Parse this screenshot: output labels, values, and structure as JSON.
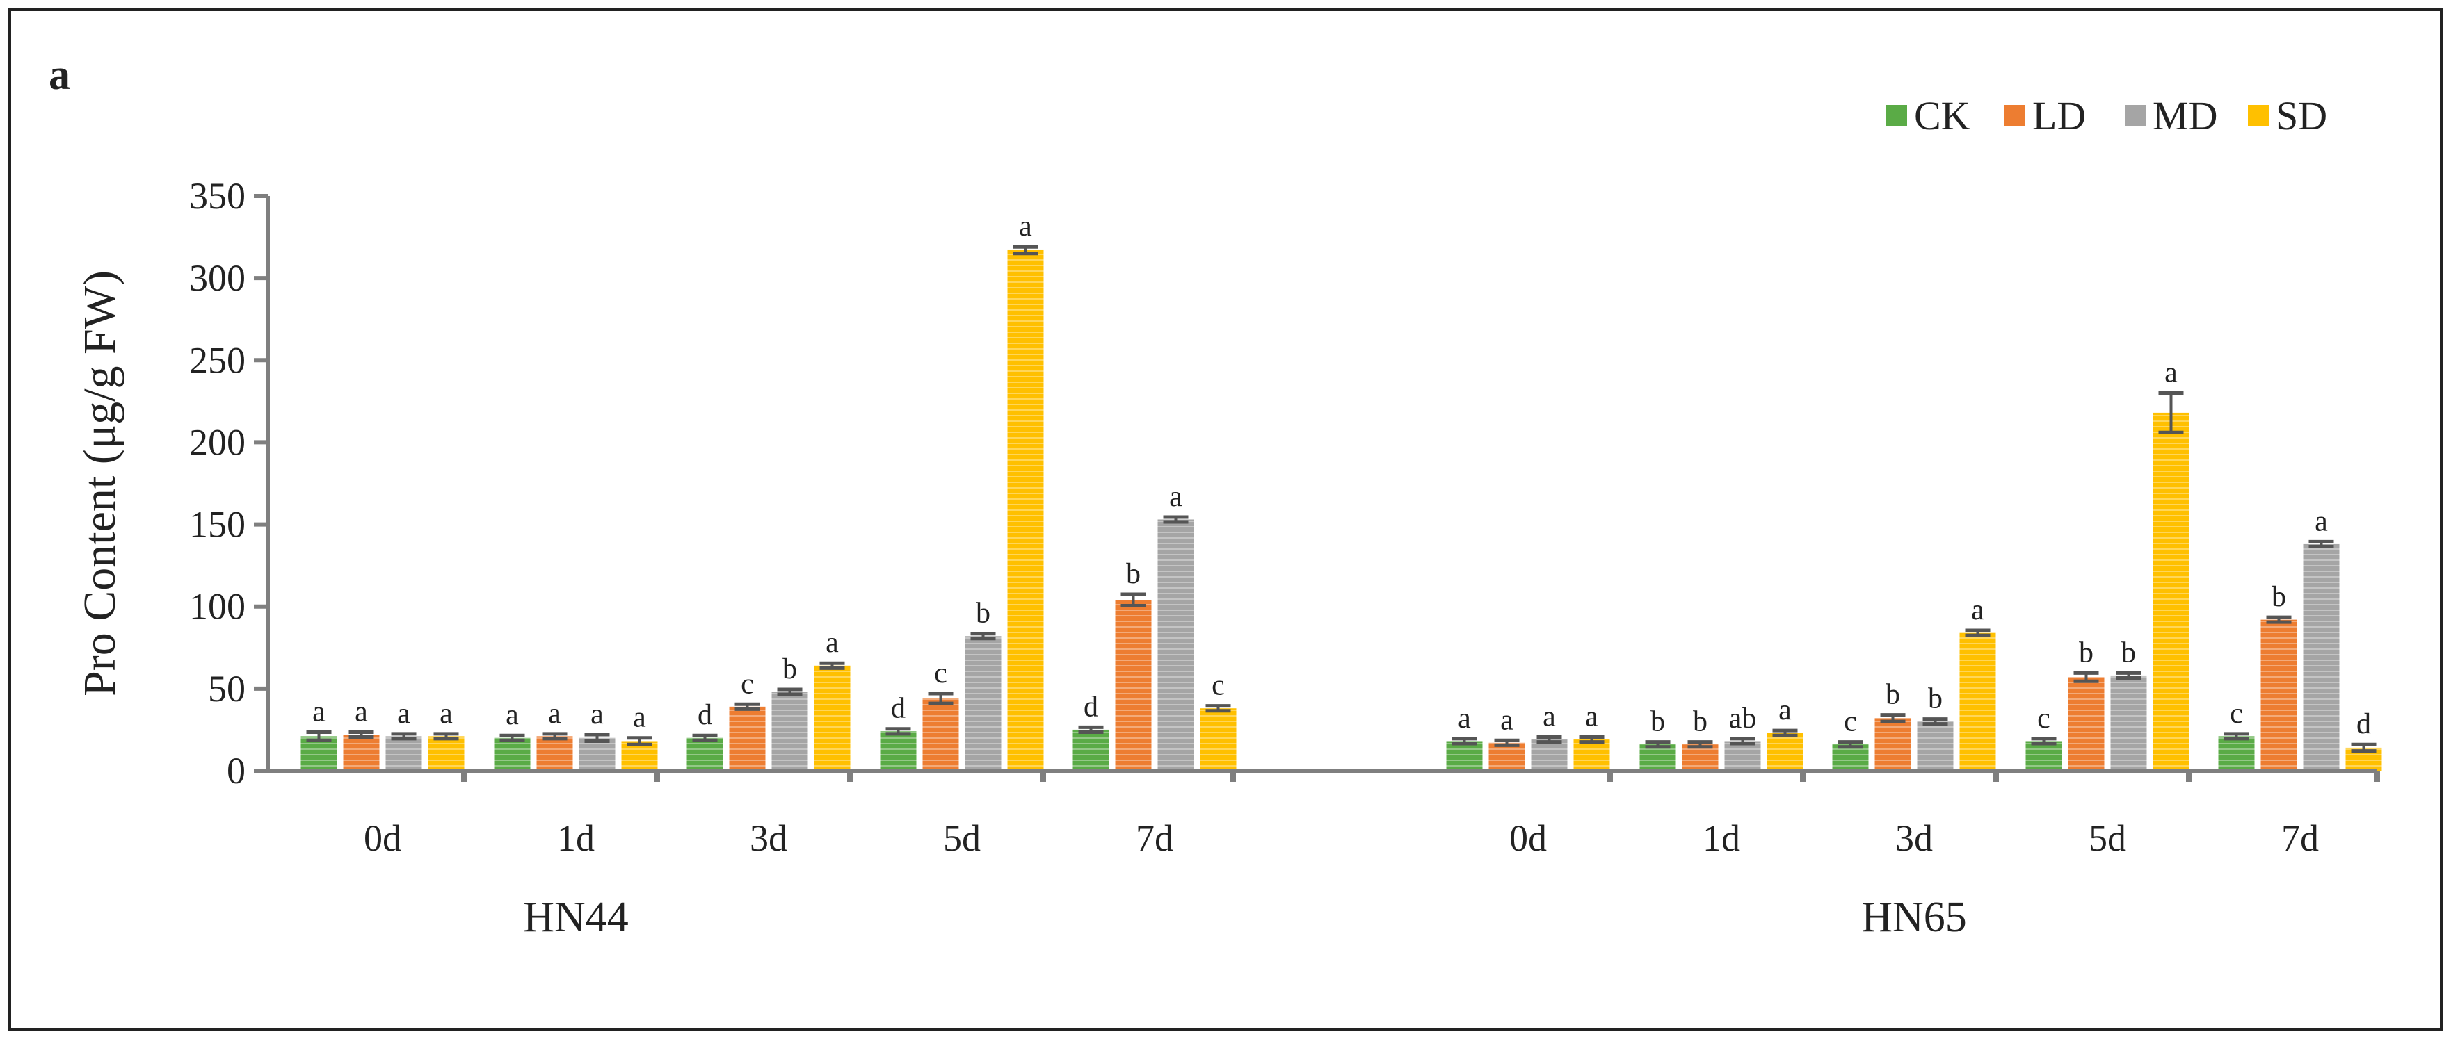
{
  "panel_label": "a",
  "chart_data": {
    "type": "bar",
    "title": "",
    "xlabel": "",
    "ylabel": "Pro Content (μg/g FW)",
    "ylim": [
      0,
      350
    ],
    "yticks": [
      0,
      50,
      100,
      150,
      200,
      250,
      300,
      350
    ],
    "grid": false,
    "legend_position": "top-right",
    "groups": [
      {
        "name": "HN44",
        "categories": [
          "0d",
          "1d",
          "3d",
          "5d",
          "7d"
        ],
        "series": [
          {
            "name": "CK",
            "values": [
              21,
              20,
              20,
              24,
              25
            ],
            "errors": [
              2.5,
              1.5,
              1.5,
              1.5,
              1.5
            ],
            "labels": [
              "a",
              "a",
              "d",
              "d",
              "d"
            ]
          },
          {
            "name": "LD",
            "values": [
              22,
              21,
              39,
              44,
              104
            ],
            "errors": [
              1.5,
              1.5,
              1.5,
              3,
              3.5
            ],
            "labels": [
              "a",
              "a",
              "c",
              "c",
              "b"
            ]
          },
          {
            "name": "MD",
            "values": [
              21,
              20,
              48,
              82,
              153
            ],
            "errors": [
              1.5,
              2,
              1.5,
              1.5,
              1.5
            ],
            "labels": [
              "a",
              "a",
              "b",
              "b",
              "a"
            ]
          },
          {
            "name": "SD",
            "values": [
              21,
              18,
              64,
              317,
              38
            ],
            "errors": [
              1.5,
              2,
              1.5,
              2,
              1.5
            ],
            "labels": [
              "a",
              "a",
              "a",
              "a",
              "c"
            ]
          }
        ]
      },
      {
        "name": "HN65",
        "categories": [
          "0d",
          "1d",
          "3d",
          "5d",
          "7d"
        ],
        "series": [
          {
            "name": "CK",
            "values": [
              18,
              16,
              16,
              18,
              21
            ],
            "errors": [
              1.5,
              1.5,
              1.5,
              1.5,
              1.5
            ],
            "labels": [
              "a",
              "b",
              "c",
              "c",
              "c"
            ]
          },
          {
            "name": "LD",
            "values": [
              17,
              16,
              32,
              57,
              92
            ],
            "errors": [
              1.5,
              1.5,
              2,
              2.5,
              1.5
            ],
            "labels": [
              "a",
              "b",
              "b",
              "b",
              "b"
            ]
          },
          {
            "name": "MD",
            "values": [
              19,
              18,
              30,
              58,
              138
            ],
            "errors": [
              1.5,
              1.5,
              1.5,
              1.5,
              1.5
            ],
            "labels": [
              "a",
              "ab",
              "b",
              "b",
              "a"
            ]
          },
          {
            "name": "SD",
            "values": [
              19,
              23,
              84,
              218,
              14
            ],
            "errors": [
              1.5,
              1.5,
              1.5,
              12,
              2
            ],
            "labels": [
              "a",
              "a",
              "a",
              "a",
              "d"
            ]
          }
        ]
      }
    ],
    "colors": {
      "CK": "#5aab46",
      "LD": "#ed7d31",
      "MD": "#a5a5a5",
      "SD": "#ffc000"
    }
  }
}
